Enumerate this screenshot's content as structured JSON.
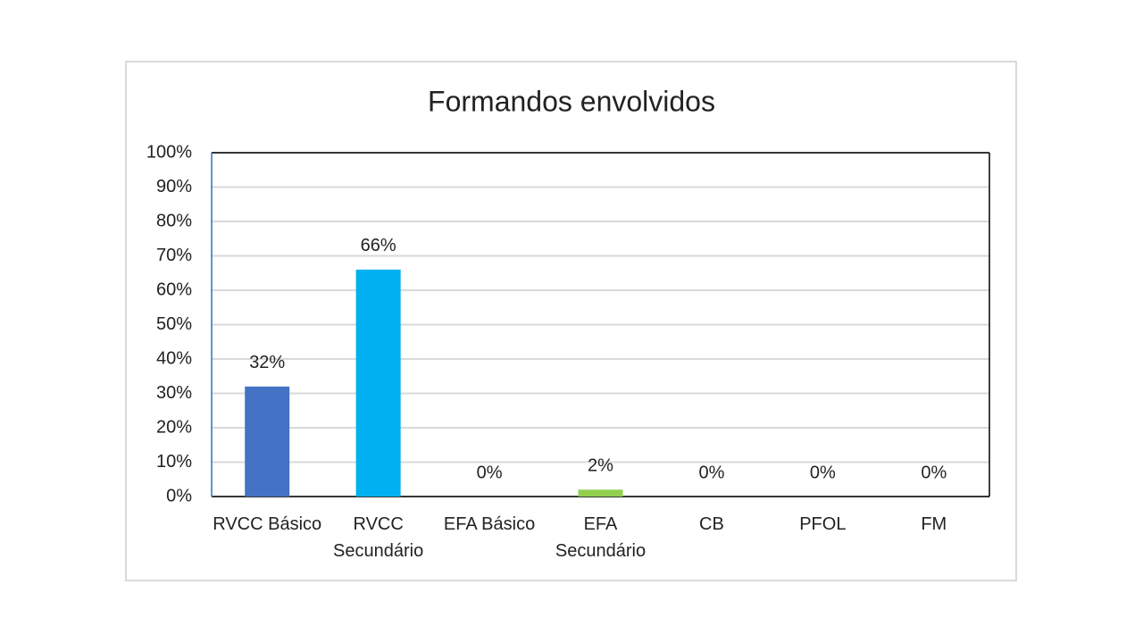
{
  "chart_data": {
    "type": "bar",
    "title": "Formandos envolvidos",
    "categories": [
      "RVCC Básico",
      "RVCC Secundário",
      "EFA Básico",
      "EFA Secundário",
      "CB",
      "PFOL",
      "FM"
    ],
    "values": [
      32,
      66,
      0,
      2,
      0,
      0,
      0
    ],
    "value_labels": [
      "32%",
      "66%",
      "0%",
      "2%",
      "0%",
      "0%",
      "0%"
    ],
    "colors": [
      "#4472c4",
      "#00b0f0",
      "#ed7d31",
      "#92d050",
      "#ffc000",
      "#a5a5a5",
      "#5b9bd5"
    ],
    "ylim": [
      0,
      100
    ],
    "yticks": [
      {
        "value": 0,
        "label": "0%"
      },
      {
        "value": 10,
        "label": "10%"
      },
      {
        "value": 20,
        "label": "20%"
      },
      {
        "value": 30,
        "label": "30%"
      },
      {
        "value": 40,
        "label": "40%"
      },
      {
        "value": 50,
        "label": "50%"
      },
      {
        "value": 60,
        "label": "60%"
      },
      {
        "value": 70,
        "label": "70%"
      },
      {
        "value": 80,
        "label": "80%"
      },
      {
        "value": 90,
        "label": "90%"
      },
      {
        "value": 100,
        "label": "100%"
      }
    ],
    "grid": true
  }
}
